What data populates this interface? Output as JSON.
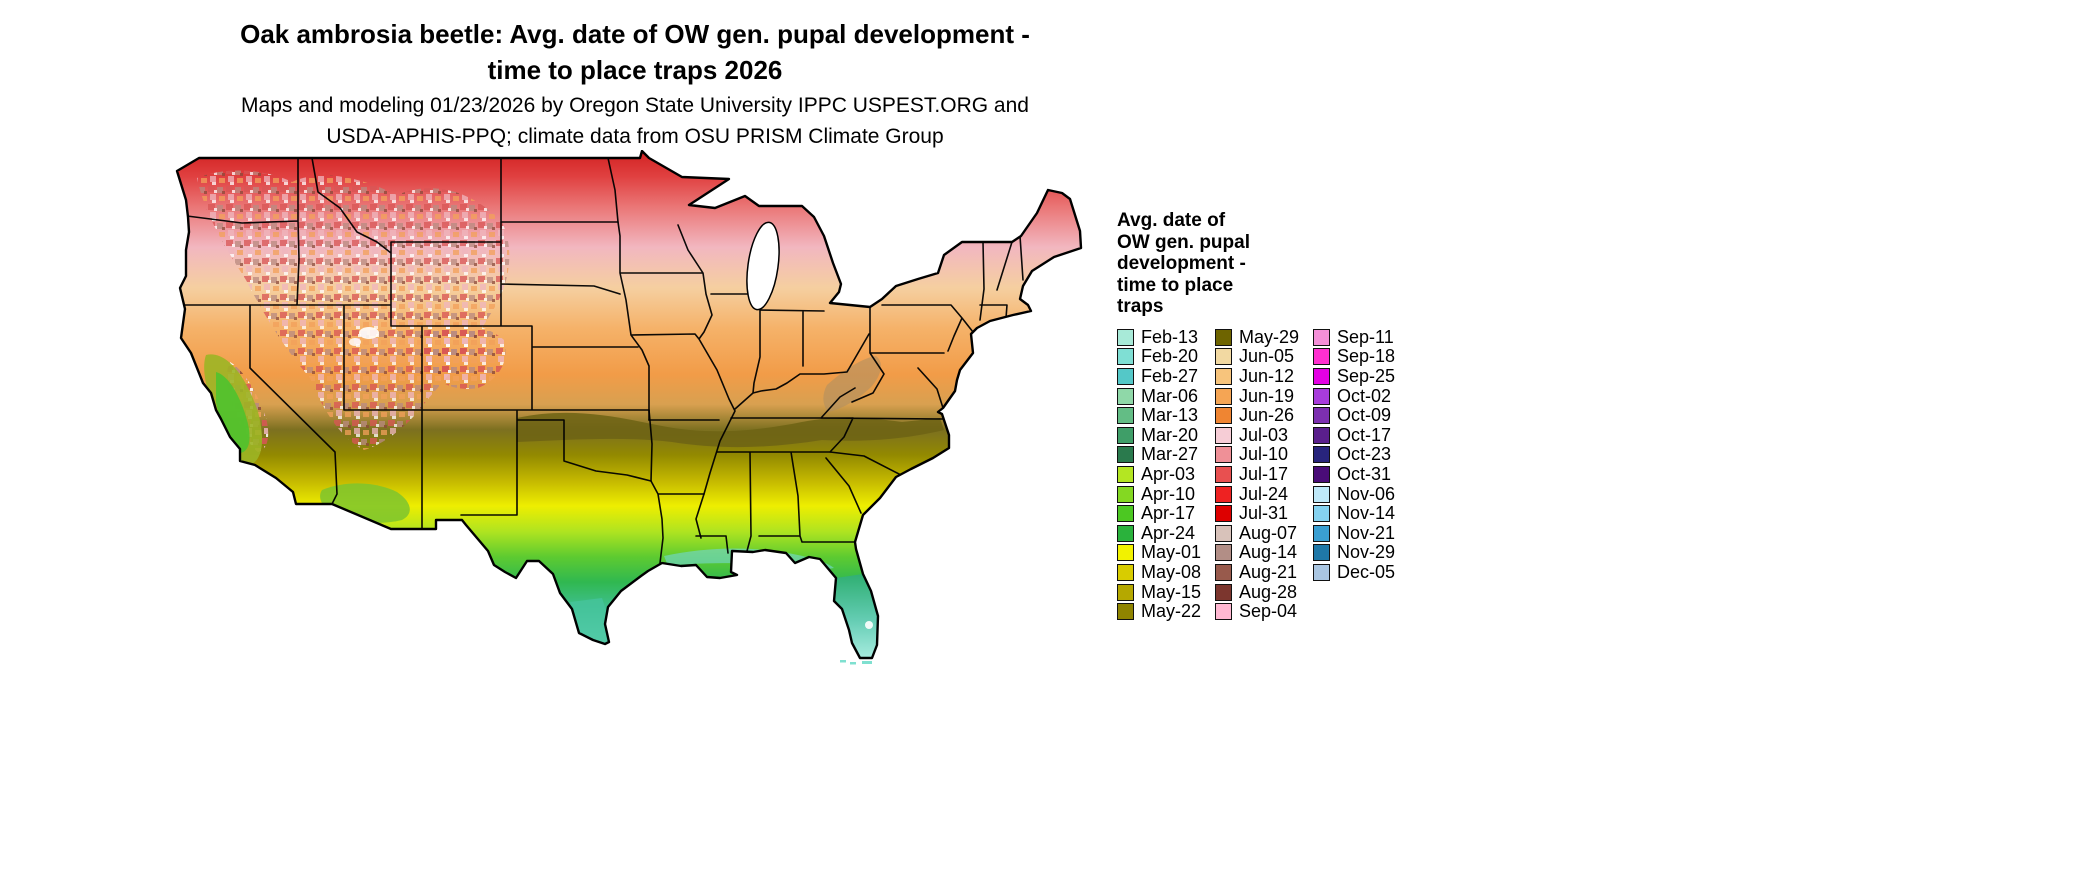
{
  "title": {
    "line1": "Oak ambrosia beetle: Avg. date of OW gen. pupal development -",
    "line2": "time to place traps 2026"
  },
  "subtitle": {
    "line1": "Maps and modeling 01/23/2026 by Oregon State University IPPC USPEST.ORG and",
    "line2": "USDA-APHIS-PPQ; climate data from OSU PRISM Climate Group"
  },
  "map": {
    "region": "Contiguous United States"
  },
  "legend": {
    "title": "Avg. date of\nOW gen. pupal\ndevelopment -\ntime to place\ntraps",
    "columns": [
      {
        "entries": [
          {
            "label": "Feb-13",
            "color": "#a8ead8"
          },
          {
            "label": "Feb-20",
            "color": "#7fdfd4"
          },
          {
            "label": "Feb-27",
            "color": "#54c8c8"
          },
          {
            "label": "Mar-06",
            "color": "#8fd8a8"
          },
          {
            "label": "Mar-13",
            "color": "#63bd85"
          },
          {
            "label": "Mar-20",
            "color": "#3f9e68"
          },
          {
            "label": "Mar-27",
            "color": "#2a7a4d"
          },
          {
            "label": "Apr-03",
            "color": "#b4e622"
          },
          {
            "label": "Apr-10",
            "color": "#84d822"
          },
          {
            "label": "Apr-17",
            "color": "#4cc822"
          },
          {
            "label": "Apr-24",
            "color": "#2ab23c"
          },
          {
            "label": "May-01",
            "color": "#f2f200"
          },
          {
            "label": "May-08",
            "color": "#d8cc00"
          },
          {
            "label": "May-15",
            "color": "#b5a800"
          },
          {
            "label": "May-22",
            "color": "#8f8400"
          }
        ]
      },
      {
        "entries": [
          {
            "label": "May-29",
            "color": "#6e6400"
          },
          {
            "label": "Jun-05",
            "color": "#f2d9a2"
          },
          {
            "label": "Jun-12",
            "color": "#f7c47c"
          },
          {
            "label": "Jun-19",
            "color": "#f5a554"
          },
          {
            "label": "Jun-26",
            "color": "#ef8532"
          },
          {
            "label": "Jul-03",
            "color": "#f6cdd6"
          },
          {
            "label": "Jul-10",
            "color": "#ef9097"
          },
          {
            "label": "Jul-17",
            "color": "#e85050"
          },
          {
            "label": "Jul-24",
            "color": "#ee2222"
          },
          {
            "label": "Jul-31",
            "color": "#dd0000"
          },
          {
            "label": "Aug-07",
            "color": "#d8c2ba"
          },
          {
            "label": "Aug-14",
            "color": "#b28e86"
          },
          {
            "label": "Aug-21",
            "color": "#985a4c"
          },
          {
            "label": "Aug-28",
            "color": "#7c362e"
          },
          {
            "label": "Sep-04",
            "color": "#ffb8d2"
          }
        ]
      },
      {
        "entries": [
          {
            "label": "Sep-11",
            "color": "#f48fd8"
          },
          {
            "label": "Sep-18",
            "color": "#ff2fd0"
          },
          {
            "label": "Sep-25",
            "color": "#e400e4"
          },
          {
            "label": "Oct-02",
            "color": "#a83cdc"
          },
          {
            "label": "Oct-09",
            "color": "#7c2fb0"
          },
          {
            "label": "Oct-17",
            "color": "#5a1f8c"
          },
          {
            "label": "Oct-23",
            "color": "#28247c"
          },
          {
            "label": "Oct-31",
            "color": "#4a0c78"
          },
          {
            "label": "Nov-06",
            "color": "#bfe9f9"
          },
          {
            "label": "Nov-14",
            "color": "#85d2f0"
          },
          {
            "label": "Nov-21",
            "color": "#3a9fd2"
          },
          {
            "label": "Nov-29",
            "color": "#1f78a8"
          },
          {
            "label": "Dec-05",
            "color": "#aac6e2"
          }
        ]
      }
    ]
  }
}
